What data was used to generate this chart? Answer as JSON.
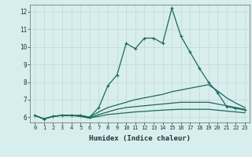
{
  "xlabel": "Humidex (Indice chaleur)",
  "bg_color": "#d8eded",
  "grid_color": "#c2d8d8",
  "line_color": "#1a6b5a",
  "xlim": [
    -0.5,
    23.5
  ],
  "ylim": [
    5.7,
    12.4
  ],
  "xticks": [
    0,
    1,
    2,
    3,
    4,
    5,
    6,
    7,
    8,
    9,
    10,
    11,
    12,
    13,
    14,
    15,
    16,
    17,
    18,
    19,
    20,
    21,
    22,
    23
  ],
  "yticks": [
    6,
    7,
    8,
    9,
    10,
    11,
    12
  ],
  "series": [
    [
      6.1,
      5.9,
      6.05,
      6.1,
      6.1,
      6.1,
      6.0,
      6.55,
      7.8,
      8.4,
      10.2,
      9.9,
      10.5,
      10.5,
      10.2,
      12.2,
      10.6,
      9.7,
      8.8,
      8.0,
      7.4,
      6.6,
      6.5,
      6.4
    ],
    [
      6.1,
      5.9,
      6.05,
      6.1,
      6.1,
      6.1,
      6.0,
      6.3,
      6.55,
      6.7,
      6.85,
      7.0,
      7.1,
      7.2,
      7.3,
      7.45,
      7.55,
      7.65,
      7.75,
      7.85,
      7.5,
      7.1,
      6.8,
      6.55
    ],
    [
      6.1,
      5.9,
      6.05,
      6.1,
      6.1,
      6.05,
      5.95,
      6.15,
      6.3,
      6.45,
      6.55,
      6.6,
      6.65,
      6.7,
      6.75,
      6.8,
      6.85,
      6.85,
      6.85,
      6.85,
      6.75,
      6.65,
      6.55,
      6.45
    ],
    [
      6.1,
      5.9,
      6.05,
      6.1,
      6.1,
      6.05,
      5.95,
      6.05,
      6.15,
      6.2,
      6.25,
      6.3,
      6.33,
      6.37,
      6.4,
      6.43,
      6.45,
      6.45,
      6.45,
      6.45,
      6.4,
      6.35,
      6.3,
      6.25
    ]
  ]
}
